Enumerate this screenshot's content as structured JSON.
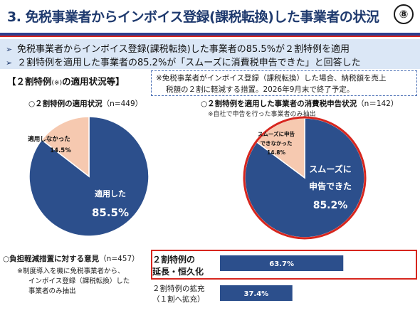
{
  "header": {
    "title": "3. 免税事業者からインボイス登録(課税転換)した事業者の状況",
    "page_badge": "⑧"
  },
  "bullets": [
    "免税事業者からインボイス登録(課税転換)した事業者の85.5%が２割特例を適用",
    "２割特例を適用した事業者の85.2%が「スムーズに消費税申告できた」と回答した"
  ],
  "section": {
    "heading": "【２割特例",
    "heading_note": "(※)",
    "heading_tail": "の適用状況等】",
    "note_line1": "※免税事業者がインボイス登録（課税転換）した場合、納税額を売上",
    "note_line2": "税額の２割に軽減する措置。2026年9月末で終了予定。"
  },
  "colors": {
    "primary": "#2c4f8c",
    "secondary": "#f6c9b0",
    "highlight": "#d7261e",
    "band": "#dbe7f6"
  },
  "chart_data": [
    {
      "type": "pie",
      "title": "○２割特例の適用状況",
      "n_label": "（n=449）",
      "slices": [
        {
          "label": "適用した",
          "value": 85.5,
          "value_text": "85.5%",
          "color": "#2c4f8c"
        },
        {
          "label": "適用しなかった",
          "value": 14.5,
          "value_text": "14.5%",
          "color": "#f6c9b0"
        }
      ]
    },
    {
      "type": "pie",
      "title": "○２割特例を適用した事業者の消費税申告状況",
      "n_label": "（n＝142）",
      "note": "※自社で申告を行った事業者のみ抽出",
      "slices": [
        {
          "label": "スムーズに申告できた",
          "label_lines": [
            "スムーズに",
            "申告できた"
          ],
          "value": 85.2,
          "value_text": "85.2%",
          "color": "#2c4f8c"
        },
        {
          "label": "スムーズに申告できなかった",
          "label_lines": [
            "スムーズに申告",
            "できなかった"
          ],
          "value": 14.8,
          "value_text": "14.8%",
          "color": "#f6c9b0"
        }
      ]
    },
    {
      "type": "bar",
      "orientation": "horizontal",
      "title": "○負担軽減措置に対する意見",
      "n_label": "（n=457）",
      "note_lines": [
        "※制度導入を機に免税事業者から、",
        "インボイス登録（課税転換）した",
        "事業者のみ抽出"
      ],
      "categories": [
        "２割特例の延長・恒久化",
        "２割特例の拡充（１割へ拡充）"
      ],
      "category_lines": [
        [
          "２割特例の",
          "延長・恒久化"
        ],
        [
          "２割特例の拡充",
          "（１割へ拡充）"
        ]
      ],
      "values": [
        63.7,
        37.4
      ],
      "value_texts": [
        "63.7%",
        "37.4%"
      ],
      "xlim": [
        0,
        100
      ],
      "highlighted": "２割特例の延長・恒久化"
    }
  ]
}
